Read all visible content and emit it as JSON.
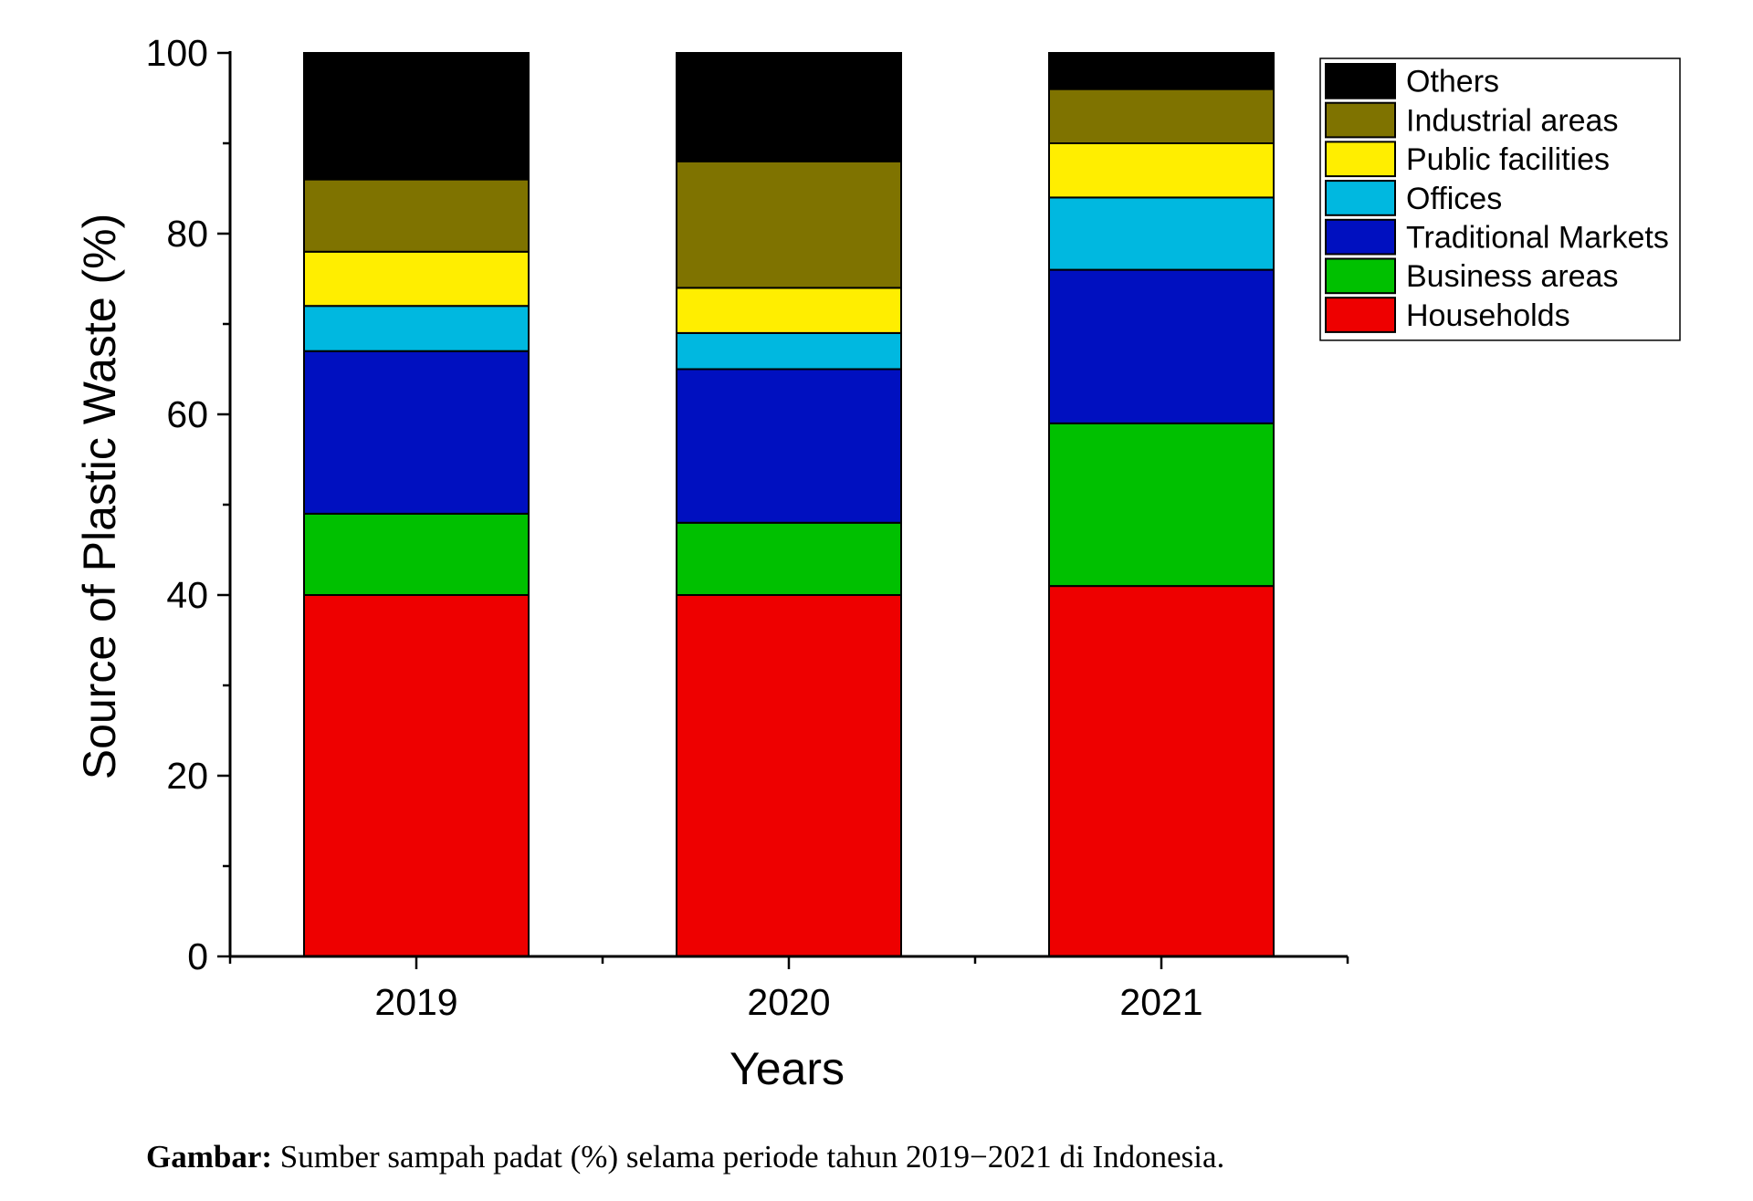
{
  "chart_data": {
    "type": "bar",
    "stacked": true,
    "categories": [
      "2019",
      "2020",
      "2021"
    ],
    "series": [
      {
        "name": "Households",
        "color": "#ee0000",
        "values": [
          40,
          40,
          41
        ]
      },
      {
        "name": "Business areas",
        "color": "#00c000",
        "values": [
          9,
          8,
          18
        ]
      },
      {
        "name": "Traditional Markets",
        "color": "#0010c0",
        "values": [
          18,
          17,
          17
        ]
      },
      {
        "name": "Offices",
        "color": "#00b8e0",
        "values": [
          5,
          4,
          8
        ]
      },
      {
        "name": "Public facilities",
        "color": "#ffee00",
        "values": [
          6,
          5,
          6
        ]
      },
      {
        "name": "Industrial areas",
        "color": "#7f7300",
        "values": [
          8,
          14,
          6
        ]
      },
      {
        "name": "Others",
        "color": "#000000",
        "values": [
          14,
          12,
          4
        ]
      }
    ],
    "legend_order": [
      "Others",
      "Industrial areas",
      "Public facilities",
      "Offices",
      "Traditional Markets",
      "Business areas",
      "Households"
    ],
    "xlabel": "Years",
    "ylabel": "Source of Plastic Waste (%)",
    "ylim": [
      0,
      100
    ],
    "yticks": [
      0,
      20,
      40,
      60,
      80,
      100
    ],
    "legend_position": "top-right",
    "grid": false
  },
  "caption": {
    "bold": "Gambar:",
    "text": " Sumber sampah padat (%) selama periode tahun 2019−2021 di Indonesia."
  }
}
